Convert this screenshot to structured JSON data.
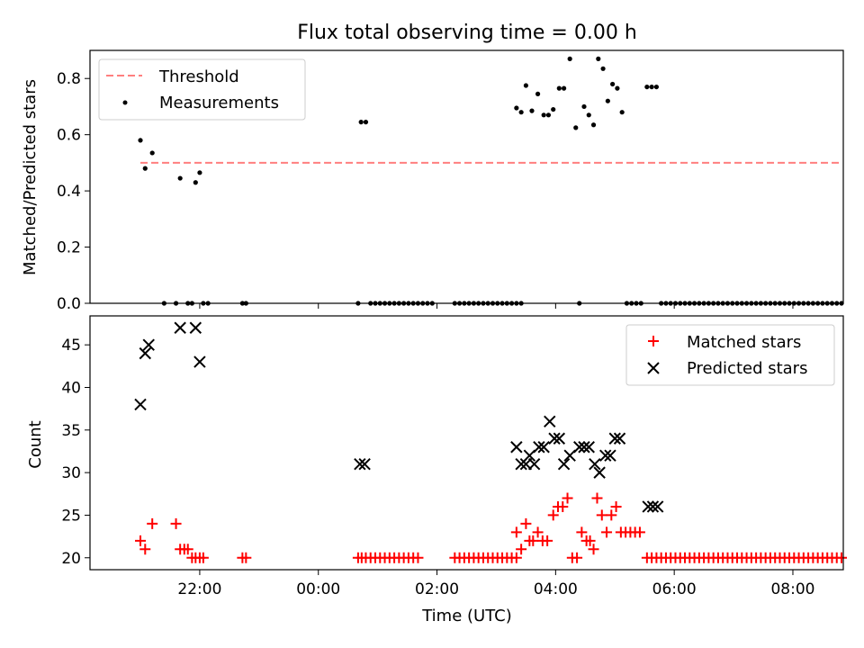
{
  "figure": {
    "title": "Flux total observing time = 0.00 h"
  },
  "chart_data": [
    {
      "type": "scatter",
      "title": "Flux total observing time = 0.00 h",
      "xlabel": "",
      "ylabel": "Matched/Predicted stars",
      "xlim": [
        -1.85,
        10.85
      ],
      "ylim": [
        0.0,
        0.9
      ],
      "yticks": [
        0.0,
        0.2,
        0.4,
        0.6,
        0.8
      ],
      "ytick_labels": [
        "0.0",
        "0.2",
        "0.4",
        "0.6",
        "0.8"
      ],
      "xticks": [
        0,
        2,
        4,
        6,
        8,
        10
      ],
      "xtick_labels": [],
      "x_unit": "hours since 22:00 UTC",
      "legend": {
        "placement": "top-left",
        "entries": [
          "Threshold",
          "Measurements"
        ]
      },
      "series": [
        {
          "name": "Threshold",
          "kind": "line",
          "style": "dashed",
          "color": "#ff7f7f",
          "points": [
            [
              -1.0,
              0.5
            ],
            [
              10.83,
              0.5
            ]
          ]
        },
        {
          "name": "Measurements",
          "kind": "points",
          "color": "#000000",
          "points": [
            [
              -1.0,
              0.58
            ],
            [
              -0.92,
              0.48
            ],
            [
              -0.8,
              0.535
            ],
            [
              -0.6,
              0.0
            ],
            [
              -0.4,
              0.0
            ],
            [
              -0.33,
              0.445
            ],
            [
              -0.2,
              0.0
            ],
            [
              -0.13,
              0.0
            ],
            [
              -0.07,
              0.43
            ],
            [
              0.0,
              0.465
            ],
            [
              0.06,
              0.0
            ],
            [
              0.14,
              0.0
            ],
            [
              0.72,
              0.0
            ],
            [
              0.78,
              0.0
            ],
            [
              2.67,
              0.0
            ],
            [
              2.72,
              0.645
            ],
            [
              2.8,
              0.645
            ],
            [
              2.88,
              0.0
            ],
            [
              2.96,
              0.0
            ],
            [
              3.04,
              0.0
            ],
            [
              3.12,
              0.0
            ],
            [
              3.2,
              0.0
            ],
            [
              3.28,
              0.0
            ],
            [
              3.36,
              0.0
            ],
            [
              3.44,
              0.0
            ],
            [
              3.52,
              0.0
            ],
            [
              3.6,
              0.0
            ],
            [
              3.68,
              0.0
            ],
            [
              3.76,
              0.0
            ],
            [
              3.84,
              0.0
            ],
            [
              3.92,
              0.0
            ],
            [
              4.3,
              0.0
            ],
            [
              4.38,
              0.0
            ],
            [
              4.46,
              0.0
            ],
            [
              4.54,
              0.0
            ],
            [
              4.62,
              0.0
            ],
            [
              4.7,
              0.0
            ],
            [
              4.78,
              0.0
            ],
            [
              4.86,
              0.0
            ],
            [
              4.94,
              0.0
            ],
            [
              5.02,
              0.0
            ],
            [
              5.1,
              0.0
            ],
            [
              5.18,
              0.0
            ],
            [
              5.26,
              0.0
            ],
            [
              5.34,
              0.0
            ],
            [
              5.42,
              0.0
            ],
            [
              5.34,
              0.695
            ],
            [
              5.42,
              0.68
            ],
            [
              5.5,
              0.775
            ],
            [
              5.6,
              0.685
            ],
            [
              5.7,
              0.745
            ],
            [
              5.8,
              0.67
            ],
            [
              5.88,
              0.67
            ],
            [
              5.96,
              0.69
            ],
            [
              6.06,
              0.765
            ],
            [
              6.14,
              0.765
            ],
            [
              6.24,
              0.87
            ],
            [
              6.34,
              0.625
            ],
            [
              6.4,
              0.0
            ],
            [
              6.48,
              0.7
            ],
            [
              6.56,
              0.67
            ],
            [
              6.64,
              0.635
            ],
            [
              6.72,
              0.87
            ],
            [
              6.8,
              0.835
            ],
            [
              6.88,
              0.72
            ],
            [
              6.96,
              0.78
            ],
            [
              7.04,
              0.765
            ],
            [
              7.12,
              0.68
            ],
            [
              7.2,
              0.0
            ],
            [
              7.28,
              0.0
            ],
            [
              7.36,
              0.0
            ],
            [
              7.44,
              0.0
            ],
            [
              7.54,
              0.77
            ],
            [
              7.62,
              0.77
            ],
            [
              7.7,
              0.77
            ],
            [
              7.78,
              0.0
            ],
            [
              7.86,
              0.0
            ],
            [
              7.94,
              0.0
            ],
            [
              8.02,
              0.0
            ],
            [
              8.1,
              0.0
            ],
            [
              8.18,
              0.0
            ],
            [
              8.26,
              0.0
            ],
            [
              8.34,
              0.0
            ],
            [
              8.42,
              0.0
            ],
            [
              8.5,
              0.0
            ],
            [
              8.58,
              0.0
            ],
            [
              8.66,
              0.0
            ],
            [
              8.74,
              0.0
            ],
            [
              8.82,
              0.0
            ],
            [
              8.9,
              0.0
            ],
            [
              8.98,
              0.0
            ],
            [
              9.06,
              0.0
            ],
            [
              9.14,
              0.0
            ],
            [
              9.22,
              0.0
            ],
            [
              9.3,
              0.0
            ],
            [
              9.38,
              0.0
            ],
            [
              9.46,
              0.0
            ],
            [
              9.54,
              0.0
            ],
            [
              9.62,
              0.0
            ],
            [
              9.7,
              0.0
            ],
            [
              9.78,
              0.0
            ],
            [
              9.86,
              0.0
            ],
            [
              9.94,
              0.0
            ],
            [
              10.02,
              0.0
            ],
            [
              10.1,
              0.0
            ],
            [
              10.18,
              0.0
            ],
            [
              10.26,
              0.0
            ],
            [
              10.34,
              0.0
            ],
            [
              10.42,
              0.0
            ],
            [
              10.5,
              0.0
            ],
            [
              10.58,
              0.0
            ],
            [
              10.66,
              0.0
            ],
            [
              10.74,
              0.0
            ],
            [
              10.82,
              0.0
            ]
          ]
        }
      ]
    },
    {
      "type": "scatter",
      "xlabel": "Time (UTC)",
      "ylabel": "Count",
      "xlim": [
        -1.85,
        10.85
      ],
      "ylim": [
        18.6,
        48.4
      ],
      "yticks": [
        20,
        25,
        30,
        35,
        40,
        45
      ],
      "ytick_labels": [
        "20",
        "25",
        "30",
        "35",
        "40",
        "45"
      ],
      "xticks": [
        0,
        2,
        4,
        6,
        8,
        10
      ],
      "xtick_labels": [
        "22:00",
        "00:00",
        "02:00",
        "04:00",
        "06:00",
        "08:00"
      ],
      "x_unit": "hours since 22:00 UTC",
      "legend": {
        "placement": "top-right",
        "entries": [
          "Matched stars",
          "Predicted stars"
        ]
      },
      "series": [
        {
          "name": "Matched stars",
          "marker": "plus",
          "color": "#ff0000",
          "points": [
            [
              -1.0,
              22
            ],
            [
              -0.92,
              21
            ],
            [
              -0.8,
              24
            ],
            [
              -0.4,
              24
            ],
            [
              -0.33,
              21
            ],
            [
              -0.26,
              21
            ],
            [
              -0.2,
              21
            ],
            [
              -0.13,
              20
            ],
            [
              -0.07,
              20
            ],
            [
              0.0,
              20
            ],
            [
              0.06,
              20
            ],
            [
              0.72,
              20
            ],
            [
              0.78,
              20
            ],
            [
              2.67,
              20
            ],
            [
              2.73,
              20
            ],
            [
              2.8,
              20
            ],
            [
              2.88,
              20
            ],
            [
              2.96,
              20
            ],
            [
              3.04,
              20
            ],
            [
              3.12,
              20
            ],
            [
              3.2,
              20
            ],
            [
              3.28,
              20
            ],
            [
              3.36,
              20
            ],
            [
              3.44,
              20
            ],
            [
              3.52,
              20
            ],
            [
              3.6,
              20
            ],
            [
              3.68,
              20
            ],
            [
              4.3,
              20
            ],
            [
              4.38,
              20
            ],
            [
              4.46,
              20
            ],
            [
              4.54,
              20
            ],
            [
              4.62,
              20
            ],
            [
              4.7,
              20
            ],
            [
              4.78,
              20
            ],
            [
              4.86,
              20
            ],
            [
              4.94,
              20
            ],
            [
              5.02,
              20
            ],
            [
              5.1,
              20
            ],
            [
              5.18,
              20
            ],
            [
              5.26,
              20
            ],
            [
              5.34,
              20
            ],
            [
              5.34,
              23
            ],
            [
              5.42,
              21
            ],
            [
              5.5,
              24
            ],
            [
              5.56,
              22
            ],
            [
              5.62,
              22
            ],
            [
              5.7,
              23
            ],
            [
              5.78,
              22
            ],
            [
              5.86,
              22
            ],
            [
              5.96,
              25
            ],
            [
              6.04,
              26
            ],
            [
              6.12,
              26
            ],
            [
              6.2,
              27
            ],
            [
              6.28,
              20
            ],
            [
              6.36,
              20
            ],
            [
              6.44,
              23
            ],
            [
              6.52,
              22
            ],
            [
              6.58,
              22
            ],
            [
              6.64,
              21
            ],
            [
              6.7,
              27
            ],
            [
              6.78,
              25
            ],
            [
              6.86,
              23
            ],
            [
              6.94,
              25
            ],
            [
              7.02,
              26
            ],
            [
              7.1,
              23
            ],
            [
              7.18,
              23
            ],
            [
              7.26,
              23
            ],
            [
              7.34,
              23
            ],
            [
              7.42,
              23
            ],
            [
              7.54,
              20
            ],
            [
              7.62,
              20
            ],
            [
              7.7,
              20
            ],
            [
              7.78,
              20
            ],
            [
              7.86,
              20
            ],
            [
              7.94,
              20
            ],
            [
              8.02,
              20
            ],
            [
              8.1,
              20
            ],
            [
              8.18,
              20
            ],
            [
              8.26,
              20
            ],
            [
              8.34,
              20
            ],
            [
              8.42,
              20
            ],
            [
              8.5,
              20
            ],
            [
              8.58,
              20
            ],
            [
              8.66,
              20
            ],
            [
              8.74,
              20
            ],
            [
              8.82,
              20
            ],
            [
              8.9,
              20
            ],
            [
              8.98,
              20
            ],
            [
              9.06,
              20
            ],
            [
              9.14,
              20
            ],
            [
              9.22,
              20
            ],
            [
              9.3,
              20
            ],
            [
              9.38,
              20
            ],
            [
              9.46,
              20
            ],
            [
              9.54,
              20
            ],
            [
              9.62,
              20
            ],
            [
              9.7,
              20
            ],
            [
              9.78,
              20
            ],
            [
              9.86,
              20
            ],
            [
              9.94,
              20
            ],
            [
              10.02,
              20
            ],
            [
              10.1,
              20
            ],
            [
              10.18,
              20
            ],
            [
              10.26,
              20
            ],
            [
              10.34,
              20
            ],
            [
              10.42,
              20
            ],
            [
              10.5,
              20
            ],
            [
              10.58,
              20
            ],
            [
              10.66,
              20
            ],
            [
              10.74,
              20
            ],
            [
              10.82,
              20
            ]
          ]
        },
        {
          "name": "Predicted stars",
          "marker": "x",
          "color": "#000000",
          "points": [
            [
              -1.0,
              38
            ],
            [
              -0.92,
              44
            ],
            [
              -0.86,
              45
            ],
            [
              -0.33,
              47
            ],
            [
              -0.07,
              47
            ],
            [
              0.0,
              43
            ],
            [
              2.7,
              31
            ],
            [
              2.78,
              31
            ],
            [
              5.34,
              33
            ],
            [
              5.42,
              31
            ],
            [
              5.5,
              31
            ],
            [
              5.56,
              32
            ],
            [
              5.64,
              31
            ],
            [
              5.72,
              33
            ],
            [
              5.8,
              33
            ],
            [
              5.9,
              36
            ],
            [
              5.98,
              34
            ],
            [
              6.06,
              34
            ],
            [
              6.14,
              31
            ],
            [
              6.24,
              32
            ],
            [
              6.4,
              33
            ],
            [
              6.48,
              33
            ],
            [
              6.56,
              33
            ],
            [
              6.66,
              31
            ],
            [
              6.74,
              30
            ],
            [
              6.84,
              32
            ],
            [
              6.92,
              32
            ],
            [
              7.0,
              34
            ],
            [
              7.08,
              34
            ],
            [
              7.56,
              26
            ],
            [
              7.64,
              26
            ],
            [
              7.72,
              26
            ]
          ]
        }
      ]
    }
  ]
}
